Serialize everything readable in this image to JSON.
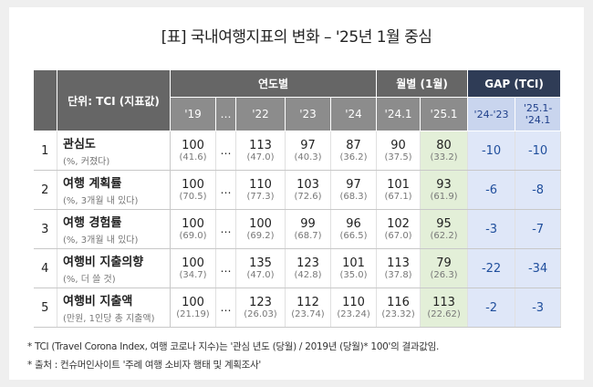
{
  "header": {
    "title": "[표] 국내여행지표의 변화 – '25년 1월 중심"
  },
  "table": {
    "unit_header": "단위: TCI (지표값)",
    "groups": [
      "연도별",
      "월별 (1월)",
      "GAP (TCI)"
    ],
    "columns": [
      "'19",
      "…",
      "'22",
      "'23",
      "'24",
      "'24.1",
      "'25.1",
      "'24-'23",
      "'25.1-'24.1"
    ],
    "rows": [
      {
        "no": "1",
        "label": "관심도",
        "note": "(%, 커졌다)",
        "skip": "…",
        "values": [
          {
            "main": "100",
            "sub": "(41.6)"
          },
          {
            "main": "113",
            "sub": "(47.0)"
          },
          {
            "main": "97",
            "sub": "(40.3)"
          },
          {
            "main": "87",
            "sub": "(36.2)"
          },
          {
            "main": "90",
            "sub": "(37.5)"
          },
          {
            "main": "80",
            "sub": "(33.2)"
          }
        ],
        "gaps": [
          "-10",
          "-10"
        ]
      },
      {
        "no": "2",
        "label": "여행 계획률",
        "note": "(%, 3개월 내 있다)",
        "skip": "…",
        "values": [
          {
            "main": "100",
            "sub": "(70.5)"
          },
          {
            "main": "110",
            "sub": "(77.3)"
          },
          {
            "main": "103",
            "sub": "(72.6)"
          },
          {
            "main": "97",
            "sub": "(68.3)"
          },
          {
            "main": "101",
            "sub": "(67.1)"
          },
          {
            "main": "93",
            "sub": "(61.9)"
          }
        ],
        "gaps": [
          "-6",
          "-8"
        ]
      },
      {
        "no": "3",
        "label": "여행 경험률",
        "note": "(%, 3개월 내 있다)",
        "skip": "…",
        "values": [
          {
            "main": "100",
            "sub": "(69.0)"
          },
          {
            "main": "100",
            "sub": "(69.2)"
          },
          {
            "main": "99",
            "sub": "(68.7)"
          },
          {
            "main": "96",
            "sub": "(66.5)"
          },
          {
            "main": "102",
            "sub": "(67.0)"
          },
          {
            "main": "95",
            "sub": "(62.2)"
          }
        ],
        "gaps": [
          "-3",
          "-7"
        ]
      },
      {
        "no": "4",
        "label": "여행비 지출의향",
        "note": "(%, 더 쓸 것)",
        "skip": "…",
        "values": [
          {
            "main": "100",
            "sub": "(34.7)"
          },
          {
            "main": "135",
            "sub": "(47.0)"
          },
          {
            "main": "123",
            "sub": "(42.8)"
          },
          {
            "main": "101",
            "sub": "(35.0)"
          },
          {
            "main": "113",
            "sub": "(37.8)"
          },
          {
            "main": "79",
            "sub": "(26.3)"
          }
        ],
        "gaps": [
          "-22",
          "-34"
        ]
      },
      {
        "no": "5",
        "label": "여행비 지출액",
        "note": "(만원, 1인당 총 지출액)",
        "skip": "…",
        "values": [
          {
            "main": "100",
            "sub": "(21.19)"
          },
          {
            "main": "123",
            "sub": "(26.03)"
          },
          {
            "main": "112",
            "sub": "(23.74)"
          },
          {
            "main": "110",
            "sub": "(23.24)"
          },
          {
            "main": "116",
            "sub": "(23.32)"
          },
          {
            "main": "113",
            "sub": "(22.62)"
          }
        ],
        "gaps": [
          "-2",
          "-3"
        ]
      }
    ]
  },
  "footnotes": [
    "* TCI (Travel Corona Index, 여행 코로나 지수)는 '관심 년도 (당월) / 2019년 (당월)* 100'의 결과값임.",
    "* 출처 : 컨슈머인사이트 '주례 여행 소비자 행태 및 계획조사'"
  ]
}
